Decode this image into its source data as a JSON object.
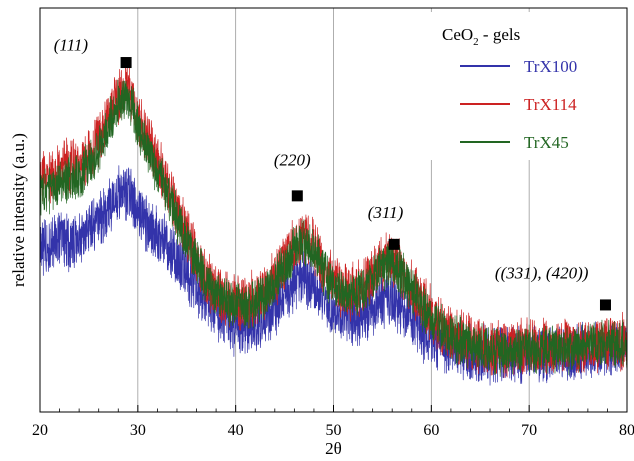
{
  "chart_data": {
    "type": "line",
    "xlabel": "2θ",
    "ylabel": "relative intensity (a.u.)",
    "xlim": [
      20,
      80
    ],
    "ylim": [
      0,
      100
    ],
    "xticks": [
      20,
      30,
      40,
      50,
      60,
      70,
      80
    ],
    "grid": {
      "vertical": [
        30,
        40,
        50,
        60,
        70
      ],
      "horizontal": false
    },
    "legend": {
      "title_main": "CeO",
      "title_sub": "2",
      "title_rest": " - gels",
      "position": "top-right",
      "entries": [
        "TrX100",
        "TrX114",
        "TrX45"
      ]
    },
    "series": [
      {
        "name": "TrX100",
        "color": "#3333aa",
        "noise": 6,
        "points": [
          [
            20,
            40
          ],
          [
            21,
            41
          ],
          [
            22,
            43
          ],
          [
            23,
            42
          ],
          [
            24,
            43
          ],
          [
            25,
            45
          ],
          [
            26,
            47
          ],
          [
            27,
            51
          ],
          [
            28,
            54
          ],
          [
            28.8,
            55
          ],
          [
            29.5,
            53
          ],
          [
            30,
            50
          ],
          [
            31,
            46
          ],
          [
            32,
            44
          ],
          [
            33,
            41
          ],
          [
            34,
            38
          ],
          [
            35,
            34
          ],
          [
            36,
            31
          ],
          [
            37,
            28
          ],
          [
            38,
            25
          ],
          [
            39,
            23
          ],
          [
            40,
            21
          ],
          [
            41,
            21
          ],
          [
            42,
            22
          ],
          [
            43,
            24
          ],
          [
            44,
            26
          ],
          [
            45,
            29
          ],
          [
            46,
            32
          ],
          [
            47,
            33
          ],
          [
            48,
            31
          ],
          [
            49,
            28
          ],
          [
            50,
            25
          ],
          [
            51,
            24
          ],
          [
            52,
            23
          ],
          [
            53,
            24
          ],
          [
            54,
            26
          ],
          [
            55,
            27.5
          ],
          [
            56,
            28
          ],
          [
            57,
            26
          ],
          [
            58,
            23
          ],
          [
            59,
            20
          ],
          [
            60,
            18
          ],
          [
            61,
            16.5
          ],
          [
            62,
            15.5
          ],
          [
            64,
            14.5
          ],
          [
            66,
            14
          ],
          [
            68,
            14
          ],
          [
            70,
            14.5
          ],
          [
            72,
            14.5
          ],
          [
            74,
            14.5
          ],
          [
            76,
            15
          ],
          [
            78,
            16
          ],
          [
            79,
            16
          ],
          [
            80,
            15.5
          ]
        ]
      },
      {
        "name": "TrX114",
        "color": "#cc2222",
        "noise": 6,
        "points": [
          [
            20,
            57
          ],
          [
            21,
            58
          ],
          [
            22,
            61
          ],
          [
            23,
            61
          ],
          [
            24,
            61
          ],
          [
            25,
            63
          ],
          [
            26,
            67
          ],
          [
            27,
            73
          ],
          [
            28,
            78.5
          ],
          [
            28.8,
            80
          ],
          [
            29.5,
            77
          ],
          [
            30,
            73
          ],
          [
            31,
            67
          ],
          [
            32,
            62
          ],
          [
            33,
            56
          ],
          [
            34,
            50
          ],
          [
            35,
            44
          ],
          [
            36,
            38
          ],
          [
            37,
            33
          ],
          [
            38,
            30
          ],
          [
            39,
            28
          ],
          [
            40,
            27
          ],
          [
            41,
            27
          ],
          [
            42,
            28
          ],
          [
            43,
            30
          ],
          [
            44,
            33
          ],
          [
            45,
            37
          ],
          [
            46,
            41
          ],
          [
            47,
            43
          ],
          [
            48,
            41
          ],
          [
            49,
            36
          ],
          [
            50,
            32
          ],
          [
            51,
            30
          ],
          [
            52,
            30
          ],
          [
            53,
            31
          ],
          [
            54,
            34
          ],
          [
            55,
            37
          ],
          [
            56,
            38
          ],
          [
            57,
            35
          ],
          [
            58,
            31
          ],
          [
            59,
            27
          ],
          [
            60,
            24
          ],
          [
            61,
            21
          ],
          [
            62,
            19
          ],
          [
            64,
            17
          ],
          [
            66,
            16
          ],
          [
            68,
            15.5
          ],
          [
            70,
            16
          ],
          [
            72,
            16
          ],
          [
            74,
            16
          ],
          [
            76,
            16.5
          ],
          [
            78,
            17.5
          ],
          [
            79,
            17
          ],
          [
            80,
            17
          ]
        ]
      },
      {
        "name": "TrX45",
        "color": "#226622",
        "noise": 5,
        "points": [
          [
            20,
            54
          ],
          [
            21,
            55
          ],
          [
            22,
            57
          ],
          [
            23,
            58
          ],
          [
            24,
            58
          ],
          [
            25,
            61
          ],
          [
            26,
            65
          ],
          [
            27,
            71
          ],
          [
            28,
            76
          ],
          [
            28.8,
            78
          ],
          [
            29.5,
            75
          ],
          [
            30,
            71
          ],
          [
            31,
            65
          ],
          [
            32,
            60
          ],
          [
            33,
            54
          ],
          [
            34,
            48
          ],
          [
            35,
            42
          ],
          [
            36,
            37
          ],
          [
            37,
            32
          ],
          [
            38,
            29
          ],
          [
            39,
            27
          ],
          [
            40,
            26
          ],
          [
            41,
            26
          ],
          [
            42,
            27
          ],
          [
            43,
            29
          ],
          [
            44,
            32
          ],
          [
            45,
            36
          ],
          [
            46,
            40
          ],
          [
            47,
            42
          ],
          [
            48,
            40
          ],
          [
            49,
            35
          ],
          [
            50,
            31
          ],
          [
            51,
            29
          ],
          [
            52,
            29
          ],
          [
            53,
            30
          ],
          [
            54,
            33
          ],
          [
            55,
            36
          ],
          [
            56,
            37
          ],
          [
            57,
            34
          ],
          [
            58,
            30
          ],
          [
            59,
            26
          ],
          [
            60,
            23
          ],
          [
            61,
            20.5
          ],
          [
            62,
            18.5
          ],
          [
            64,
            16.5
          ],
          [
            66,
            15.5
          ],
          [
            68,
            15
          ],
          [
            70,
            15.5
          ],
          [
            72,
            15.5
          ],
          [
            74,
            15.5
          ],
          [
            76,
            16
          ],
          [
            78,
            17
          ],
          [
            79,
            16.5
          ],
          [
            80,
            16.5
          ]
        ]
      }
    ],
    "annotations": [
      {
        "text": "(111)",
        "x": 21.4,
        "y": 89.5,
        "marker": true,
        "marker_x": 28.8,
        "marker_y": 86.5
      },
      {
        "text": "(220)",
        "x": 43.9,
        "y": 61,
        "marker": true,
        "marker_x": 46.3,
        "marker_y": 53.5
      },
      {
        "text": "(311)",
        "x": 53.5,
        "y": 48,
        "marker": true,
        "marker_x": 56.2,
        "marker_y": 41.5
      },
      {
        "text": "((331), (420))",
        "x": 66.5,
        "y": 33,
        "marker": true,
        "marker_x": 77.8,
        "marker_y": 26.5
      }
    ]
  }
}
